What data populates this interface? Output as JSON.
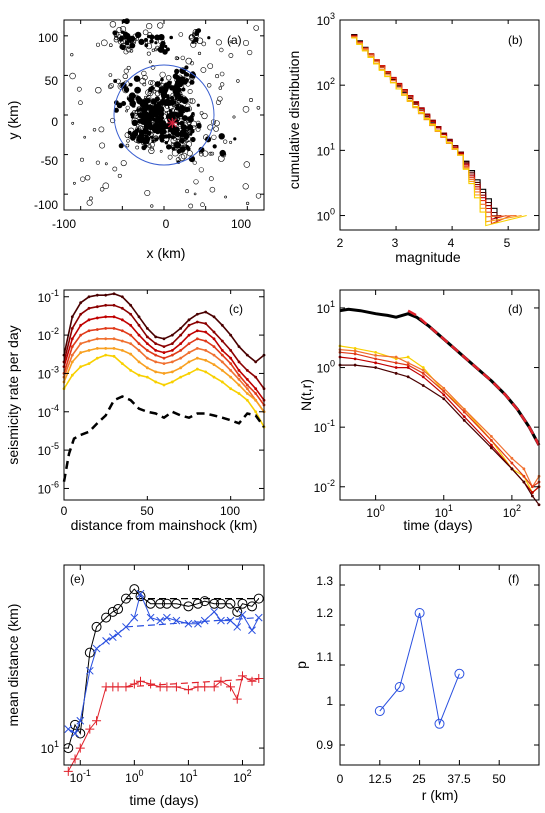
{
  "chart_data": [
    {
      "panel": "(a)",
      "type": "scatter",
      "xlabel": "x (km)",
      "ylabel": "y (km)",
      "xlim": [
        -120,
        120
      ],
      "ylim": [
        -120,
        120
      ],
      "xticks": [
        "-100",
        "0",
        "100"
      ],
      "yticks": [
        "100",
        "50",
        "0",
        "-50",
        "-100"
      ],
      "circle_radius_km": 60,
      "mainshock": [
        10,
        -10
      ],
      "colors": {
        "events": "#000000",
        "circle": "#3a5fd0",
        "mainshock": "#d0203a"
      }
    },
    {
      "panel": "(b)",
      "type": "line",
      "xlabel": "magnitude",
      "ylabel": "cumulative distribution",
      "xlim": [
        2,
        5.5
      ],
      "ylim": [
        1,
        1000
      ],
      "yscale": "log",
      "xticks": [
        "2",
        "3",
        "4",
        "5"
      ],
      "yticks": [
        "10^0",
        "10^1",
        "10^2",
        "10^3"
      ],
      "series_colors": [
        "#000000",
        "#4a0000",
        "#8b0000",
        "#c00000",
        "#e03a1a",
        "#f07030",
        "#f8a020",
        "#f8d000"
      ]
    },
    {
      "panel": "(c)",
      "type": "line",
      "xlabel": "distance from mainshock (km)",
      "ylabel": "seismicity rate per day",
      "xlim": [
        0,
        120
      ],
      "ylim": [
        1e-06,
        0.1
      ],
      "yscale": "log",
      "xticks": [
        "0",
        "50",
        "100"
      ],
      "yticks": [
        "10^-6",
        "10^-5",
        "10^-4",
        "10^-3",
        "10^-2",
        "10^-1"
      ],
      "series": [
        {
          "x": [
            0,
            5,
            10,
            15,
            20,
            25,
            30,
            35,
            40,
            45,
            50,
            55,
            60,
            65,
            70,
            75,
            80,
            85,
            90,
            95,
            100,
            105,
            110,
            115,
            120
          ],
          "y": [
            0.003,
            0.03,
            0.07,
            0.1,
            0.11,
            0.11,
            0.12,
            0.1,
            0.06,
            0.03,
            0.015,
            0.009,
            0.008,
            0.01,
            0.015,
            0.025,
            0.035,
            0.04,
            0.03,
            0.018,
            0.01,
            0.005,
            0.003,
            0.002,
            0.003
          ],
          "color": "#4a0000"
        },
        {
          "x": [
            0,
            5,
            10,
            15,
            20,
            25,
            30,
            35,
            40,
            45,
            50,
            55,
            60,
            65,
            70,
            75,
            80,
            85,
            90,
            95,
            100,
            105,
            110,
            115,
            120
          ],
          "y": [
            0.002,
            0.015,
            0.035,
            0.05,
            0.055,
            0.06,
            0.06,
            0.05,
            0.035,
            0.018,
            0.009,
            0.006,
            0.005,
            0.006,
            0.01,
            0.018,
            0.022,
            0.02,
            0.012,
            0.007,
            0.004,
            0.002,
            0.0012,
            0.0008,
            0.0004
          ],
          "color": "#8b0000"
        },
        {
          "x": [
            0,
            5,
            10,
            15,
            20,
            25,
            30,
            35,
            40,
            45,
            50,
            55,
            60,
            65,
            70,
            75,
            80,
            85,
            90,
            95,
            100,
            105,
            110,
            115,
            120
          ],
          "y": [
            0.0015,
            0.008,
            0.018,
            0.025,
            0.028,
            0.03,
            0.03,
            0.025,
            0.018,
            0.01,
            0.006,
            0.004,
            0.0035,
            0.004,
            0.006,
            0.01,
            0.013,
            0.012,
            0.008,
            0.004,
            0.0025,
            0.0012,
            0.0007,
            0.0004,
            0.0002
          ],
          "color": "#c00000"
        },
        {
          "x": [
            0,
            5,
            10,
            15,
            20,
            25,
            30,
            35,
            40,
            45,
            50,
            55,
            60,
            65,
            70,
            75,
            80,
            85,
            90,
            95,
            100,
            105,
            110,
            115,
            120
          ],
          "y": [
            0.001,
            0.005,
            0.01,
            0.013,
            0.014,
            0.015,
            0.015,
            0.013,
            0.01,
            0.006,
            0.004,
            0.003,
            0.0025,
            0.003,
            0.004,
            0.006,
            0.008,
            0.007,
            0.005,
            0.003,
            0.0018,
            0.0009,
            0.0005,
            0.0003,
            0.00015
          ],
          "color": "#e03a1a"
        },
        {
          "x": [
            0,
            5,
            10,
            15,
            20,
            25,
            30,
            35,
            40,
            45,
            50,
            55,
            60,
            65,
            70,
            75,
            80,
            85,
            90,
            95,
            100,
            105,
            110,
            115,
            120
          ],
          "y": [
            0.0008,
            0.003,
            0.006,
            0.007,
            0.008,
            0.008,
            0.008,
            0.007,
            0.006,
            0.004,
            0.0025,
            0.002,
            0.0018,
            0.002,
            0.0025,
            0.0035,
            0.0045,
            0.004,
            0.003,
            0.002,
            0.0012,
            0.0007,
            0.0004,
            0.0002,
            0.0001
          ],
          "color": "#f07030"
        },
        {
          "x": [
            0,
            5,
            10,
            15,
            20,
            25,
            30,
            35,
            40,
            45,
            50,
            55,
            60,
            65,
            70,
            75,
            80,
            85,
            90,
            95,
            100,
            105,
            110,
            115,
            120
          ],
          "y": [
            0.0006,
            0.002,
            0.0035,
            0.004,
            0.0045,
            0.0045,
            0.0045,
            0.004,
            0.0032,
            0.002,
            0.0014,
            0.0011,
            0.001,
            0.0011,
            0.0014,
            0.002,
            0.0025,
            0.0022,
            0.0017,
            0.0012,
            0.0008,
            0.0005,
            0.0003,
            0.0002,
            0.0001
          ],
          "color": "#f8a020"
        },
        {
          "x": [
            0,
            5,
            10,
            15,
            20,
            25,
            30,
            35,
            40,
            45,
            50,
            55,
            60,
            65,
            70,
            75,
            80,
            85,
            90,
            95,
            100,
            105,
            110,
            115,
            120
          ],
          "y": [
            0.0004,
            0.0009,
            0.0015,
            0.0018,
            0.0025,
            0.003,
            0.0028,
            0.0018,
            0.0012,
            0.0009,
            0.0008,
            0.0006,
            0.0005,
            0.0006,
            0.0008,
            0.001,
            0.0013,
            0.0011,
            0.0008,
            0.0006,
            0.0004,
            0.0003,
            0.0002,
            0.0001,
            4e-05
          ],
          "color": "#f8d000"
        },
        {
          "x": [
            0,
            3,
            6,
            10,
            15,
            20,
            25,
            30,
            35,
            40,
            45,
            50,
            55,
            60,
            65,
            70,
            75,
            80,
            85,
            90,
            95,
            100,
            105,
            110,
            115,
            120
          ],
          "y": [
            1.5e-06,
            8e-06,
            2e-05,
            2.5e-05,
            3e-05,
            5e-05,
            8e-05,
            0.0002,
            0.00025,
            0.0002,
            0.00012,
            0.0001,
            9e-05,
            7e-05,
            0.0001,
            8e-05,
            7e-05,
            9e-05,
            9e-05,
            8e-05,
            7e-05,
            6e-05,
            5e-05,
            9e-05,
            8e-05,
            4e-05
          ],
          "color": "#000000",
          "dashed": true
        }
      ]
    },
    {
      "panel": "(d)",
      "type": "line",
      "xlabel": "time (days)",
      "ylabel": "N(t,r)",
      "xlim": [
        0.3,
        250
      ],
      "ylim": [
        0.006,
        20
      ],
      "xscale": "log",
      "yscale": "log",
      "xticks": [
        "10^0",
        "10^1",
        "10^2"
      ],
      "yticks": [
        "10^-2",
        "10^-1",
        "10^0",
        "10^1"
      ],
      "series": [
        {
          "x": [
            0.3,
            0.4,
            0.6,
            1,
            1.5,
            2,
            3,
            4,
            6,
            10,
            15,
            20,
            30,
            50,
            80,
            120,
            180,
            250
          ],
          "y": [
            9,
            9.5,
            9,
            8,
            7.5,
            7,
            8,
            7,
            5,
            3,
            2,
            1.5,
            1,
            0.6,
            0.35,
            0.2,
            0.1,
            0.05
          ],
          "color": "#000000",
          "width": 3
        },
        {
          "x": [
            3,
            4,
            6,
            10,
            15,
            20,
            30,
            50,
            80,
            120,
            180,
            250
          ],
          "y": [
            9,
            7.5,
            5,
            3,
            2,
            1.5,
            1,
            0.6,
            0.35,
            0.2,
            0.1,
            0.05
          ],
          "color": "#e0202a",
          "width": 2.5,
          "dashed": true
        },
        {
          "x": [
            0.3,
            0.5,
            1,
            2,
            3,
            5,
            10,
            20,
            50,
            100,
            150,
            200,
            250
          ],
          "y": [
            2.3,
            2.1,
            1.8,
            1.4,
            1.5,
            1.0,
            0.4,
            0.2,
            0.06,
            0.02,
            0.015,
            0.008,
            0.01
          ],
          "color": "#f8d000"
        },
        {
          "x": [
            0.3,
            0.5,
            1,
            2,
            3,
            5,
            10,
            20,
            50,
            100,
            150,
            200,
            250
          ],
          "y": [
            2.0,
            1.9,
            1.6,
            1.5,
            1.2,
            0.9,
            0.45,
            0.2,
            0.07,
            0.03,
            0.02,
            0.01,
            0.015
          ],
          "color": "#f07030"
        },
        {
          "x": [
            0.3,
            0.5,
            1,
            2,
            3,
            5,
            10,
            20,
            50,
            100,
            150,
            200,
            250
          ],
          "y": [
            1.8,
            1.7,
            1.4,
            1.2,
            1.1,
            0.8,
            0.4,
            0.18,
            0.06,
            0.025,
            0.015,
            0.01,
            0.012
          ],
          "color": "#e03a1a"
        },
        {
          "x": [
            0.3,
            0.5,
            1,
            2,
            3,
            5,
            10,
            20,
            50,
            100,
            150,
            200,
            250
          ],
          "y": [
            1.5,
            1.4,
            1.2,
            1.0,
            1.0,
            0.7,
            0.35,
            0.15,
            0.05,
            0.02,
            0.012,
            0.008,
            0.01
          ],
          "color": "#c00000"
        },
        {
          "x": [
            0.3,
            0.5,
            1,
            2,
            3,
            5,
            10,
            20,
            50,
            100,
            150,
            200,
            250
          ],
          "y": [
            1.1,
            1.1,
            1.0,
            0.8,
            0.7,
            0.5,
            0.3,
            0.13,
            0.045,
            0.02,
            0.012,
            0.007,
            0.005
          ],
          "color": "#4a0000"
        }
      ]
    },
    {
      "panel": "(e)",
      "type": "line",
      "xlabel": "time (days)",
      "ylabel": "mean distance (km)",
      "xlim": [
        0.05,
        250
      ],
      "ylim": [
        8.5,
        58
      ],
      "xscale": "log",
      "yscale": "log",
      "xticks": [
        "10^-1",
        "10^0",
        "10^1",
        "10^2"
      ],
      "yticks": [
        "10^1"
      ],
      "series": [
        {
          "x": [
            0.06,
            0.08,
            0.1,
            0.15,
            0.2,
            0.3,
            0.4,
            0.5,
            0.7,
            1,
            1.3,
            2,
            3,
            4,
            6,
            10,
            15,
            20,
            30,
            40,
            60,
            80,
            100,
            150,
            200
          ],
          "y": [
            10,
            12.5,
            11.5,
            25,
            32,
            35,
            37,
            38,
            42,
            46,
            43,
            40,
            40,
            40,
            40,
            39,
            40,
            41,
            40,
            40,
            40,
            37,
            40,
            39,
            42
          ],
          "color": "#000000",
          "marker": "o"
        },
        {
          "x": [
            0.06,
            0.08,
            0.1,
            0.15,
            0.2,
            0.3,
            0.4,
            0.5,
            0.7,
            1,
            1.3,
            2,
            3,
            4,
            6,
            10,
            15,
            20,
            30,
            40,
            60,
            80,
            100,
            150,
            200
          ],
          "y": [
            12,
            11.5,
            13,
            21,
            26,
            28,
            29,
            30,
            32,
            35,
            44,
            35,
            34,
            35,
            34,
            33,
            33,
            34,
            37,
            34,
            34,
            32,
            36,
            31,
            35
          ],
          "color": "#2a50e0",
          "marker": "x"
        },
        {
          "x": [
            0.06,
            0.08,
            0.1,
            0.15,
            0.2,
            0.3,
            0.4,
            0.5,
            0.7,
            1,
            1.3,
            2,
            3,
            4,
            6,
            10,
            15,
            20,
            30,
            40,
            60,
            80,
            100,
            150,
            200
          ],
          "y": [
            8,
            9,
            10,
            12,
            13,
            18,
            18,
            18,
            18,
            18.5,
            19,
            18.5,
            18,
            18,
            18,
            17.5,
            18,
            18,
            18,
            19,
            18,
            16,
            20,
            19,
            19.5
          ],
          "color": "#e0202a",
          "marker": "+"
        }
      ]
    },
    {
      "panel": "(f)",
      "type": "line",
      "xlabel": "r (km)",
      "ylabel": "p",
      "xlim": [
        0,
        62.5
      ],
      "ylim": [
        0.85,
        1.35
      ],
      "xticks": [
        "0",
        "12.5",
        "25",
        "37.5",
        "50"
      ],
      "yticks": [
        "0.9",
        "1",
        "1.1",
        "1.2",
        "1.3"
      ],
      "series": [
        {
          "x": [
            12.5,
            18.75,
            25,
            31.25,
            37.5
          ],
          "y": [
            0.985,
            1.045,
            1.23,
            0.953,
            1.078
          ],
          "color": "#2a50e0",
          "marker": "o"
        }
      ]
    }
  ],
  "panels": {
    "a": {
      "label": "(a)",
      "xlabel": "x (km)",
      "ylabel": "y (km)",
      "xt": [
        "-100",
        "0",
        "100"
      ],
      "yt": [
        "100",
        "50",
        "0",
        "-50",
        "-100"
      ]
    },
    "b": {
      "label": "(b)",
      "xlabel": "magnitude",
      "ylabel": "cumulative distribution",
      "xt": [
        "2",
        "3",
        "4",
        "5"
      ]
    },
    "c": {
      "label": "(c)",
      "xlabel": "distance from mainshock (km)",
      "ylabel": "seismicity rate per day",
      "xt": [
        "0",
        "50",
        "100"
      ]
    },
    "d": {
      "label": "(d)",
      "xlabel": "time (days)",
      "ylabel": "N(t,r)"
    },
    "e": {
      "label": "(e)",
      "xlabel": "time (days)",
      "ylabel": "mean distance (km)"
    },
    "f": {
      "label": "(f)",
      "xlabel": "r (km)",
      "ylabel": "p",
      "xt": [
        "0",
        "12.5",
        "25",
        "37.5",
        "50"
      ],
      "yt": [
        "0.9",
        "1",
        "1.1",
        "1.2",
        "1.3"
      ]
    }
  }
}
